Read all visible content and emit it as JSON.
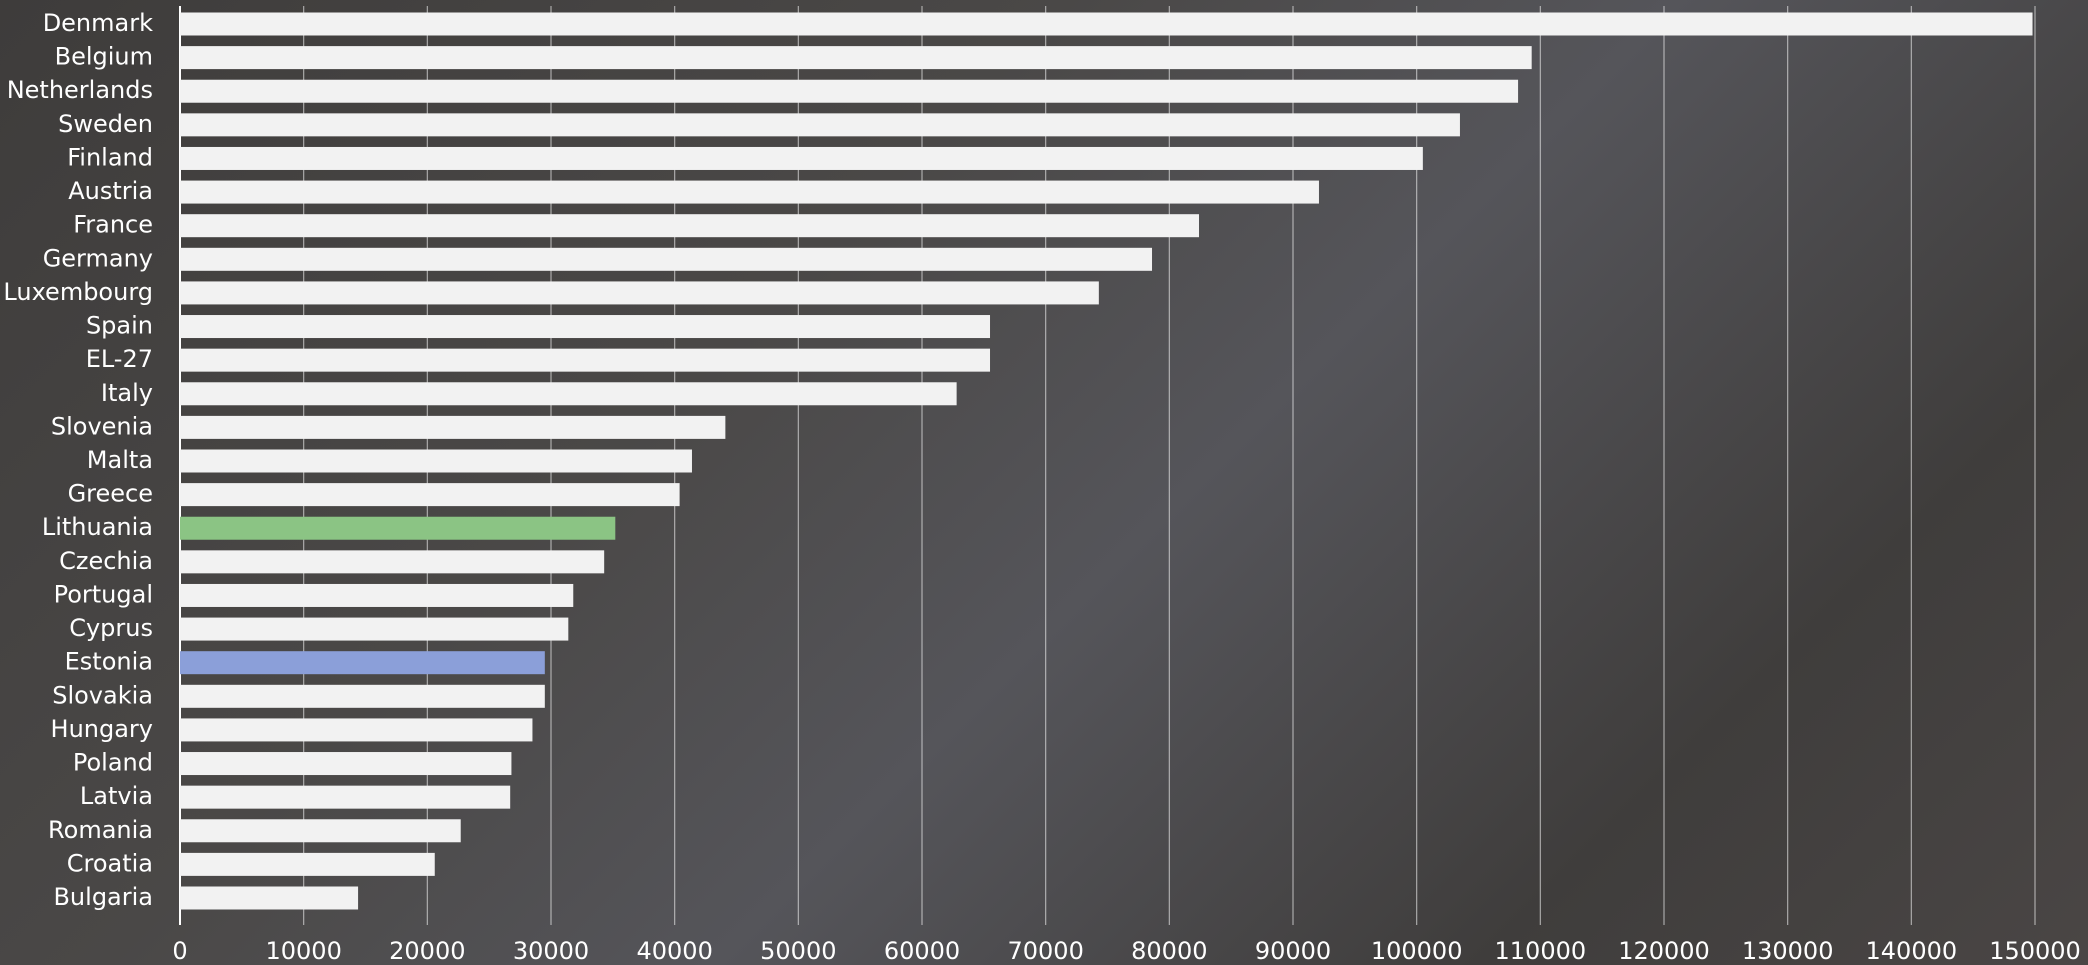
{
  "chart_data": {
    "type": "bar",
    "orientation": "horizontal",
    "categories": [
      "Denmark",
      "Belgium",
      "Netherlands",
      "Sweden",
      "Finland",
      "Austria",
      "France",
      "Germany",
      "Luxembourg",
      "Spain",
      "EL-27",
      "Italy",
      "Slovenia",
      "Malta",
      "Greece",
      "Lithuania",
      "Czechia",
      "Portugal",
      "Cyprus",
      "Estonia",
      "Slovakia",
      "Hungary",
      "Poland",
      "Latvia",
      "Romania",
      "Croatia",
      "Bulgaria"
    ],
    "values": [
      149800,
      109300,
      108200,
      103500,
      100500,
      92100,
      82400,
      78600,
      74300,
      65500,
      65500,
      62800,
      44100,
      41400,
      40400,
      35200,
      34300,
      31800,
      31400,
      29500,
      29500,
      28500,
      26800,
      26700,
      22700,
      20600,
      14400
    ],
    "colors": [
      "#f2f2f2",
      "#f2f2f2",
      "#f2f2f2",
      "#f2f2f2",
      "#f2f2f2",
      "#f2f2f2",
      "#f2f2f2",
      "#f2f2f2",
      "#f2f2f2",
      "#f2f2f2",
      "#f2f2f2",
      "#f2f2f2",
      "#f2f2f2",
      "#f2f2f2",
      "#f2f2f2",
      "#8bc484",
      "#f2f2f2",
      "#f2f2f2",
      "#f2f2f2",
      "#8b9fd9",
      "#f2f2f2",
      "#f2f2f2",
      "#f2f2f2",
      "#f2f2f2",
      "#f2f2f2",
      "#f2f2f2",
      "#f2f2f2"
    ],
    "xlim": [
      0,
      150000
    ],
    "xticks": [
      0,
      10000,
      20000,
      30000,
      40000,
      50000,
      60000,
      70000,
      80000,
      90000,
      100000,
      110000,
      120000,
      130000,
      140000,
      150000
    ],
    "grid": true
  }
}
